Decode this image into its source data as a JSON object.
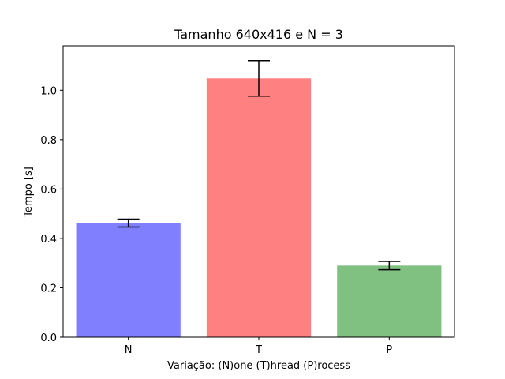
{
  "chart_data": {
    "type": "bar",
    "title": "Tamanho 640x416 e N = 3",
    "xlabel": "Variação: (N)one (T)hread (P)rocess",
    "ylabel": "Tempo [s]",
    "categories": [
      "N",
      "T",
      "P"
    ],
    "values": [
      0.462,
      1.048,
      0.29
    ],
    "errors": [
      0.016,
      0.072,
      0.017
    ],
    "colors": [
      "#8080ff",
      "#ff8080",
      "#80c080"
    ],
    "ylim": [
      0,
      1.18
    ],
    "yticks": [
      0.0,
      0.2,
      0.4,
      0.6,
      0.8,
      1.0
    ],
    "ytick_labels": [
      "0.0",
      "0.2",
      "0.4",
      "0.6",
      "0.8",
      "1.0"
    ],
    "grid": false,
    "legend": "none"
  }
}
